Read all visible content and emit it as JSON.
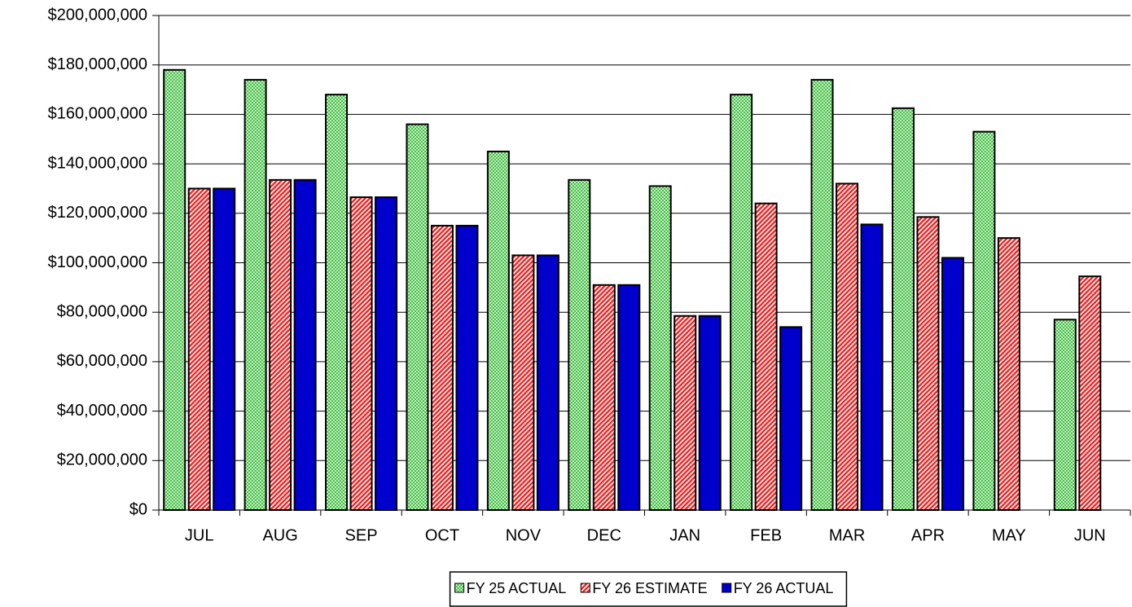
{
  "chart_data": {
    "type": "bar",
    "categories": [
      "JUL",
      "AUG",
      "SEP",
      "OCT",
      "NOV",
      "DEC",
      "JAN",
      "FEB",
      "MAR",
      "APR",
      "MAY",
      "JUN"
    ],
    "series": [
      {
        "name": "FY 25 ACTUAL",
        "color": "#33bb33",
        "values": [
          178000000,
          174000000,
          168000000,
          156000000,
          145000000,
          133500000,
          131000000,
          168000000,
          174000000,
          162500000,
          153000000,
          77000000
        ]
      },
      {
        "name": "FY 26 ESTIMATE",
        "color": "#ee2222",
        "values": [
          130000000,
          133500000,
          126500000,
          115000000,
          103000000,
          91000000,
          78500000,
          124000000,
          132000000,
          118500000,
          110000000,
          94500000
        ]
      },
      {
        "name": "FY 26 ACTUAL",
        "color": "#0000cc",
        "values": [
          130000000,
          133500000,
          126500000,
          115000000,
          103000000,
          91000000,
          78500000,
          74000000,
          115500000,
          102000000,
          null,
          null
        ]
      }
    ],
    "ylim": [
      0,
      200000000
    ],
    "yticks": [
      {
        "value": 0,
        "label": "$0"
      },
      {
        "value": 20000000,
        "label": "$20,000,000"
      },
      {
        "value": 40000000,
        "label": "$40,000,000"
      },
      {
        "value": 60000000,
        "label": "$60,000,000"
      },
      {
        "value": 80000000,
        "label": "$80,000,000"
      },
      {
        "value": 100000000,
        "label": "$100,000,000"
      },
      {
        "value": 120000000,
        "label": "$120,000,000"
      },
      {
        "value": 140000000,
        "label": "$140,000,000"
      },
      {
        "value": 160000000,
        "label": "$160,000,000"
      },
      {
        "value": 180000000,
        "label": "$180,000,000"
      },
      {
        "value": 200000000,
        "label": "$200,000,000"
      }
    ],
    "grid": true,
    "legend": "bottom"
  }
}
